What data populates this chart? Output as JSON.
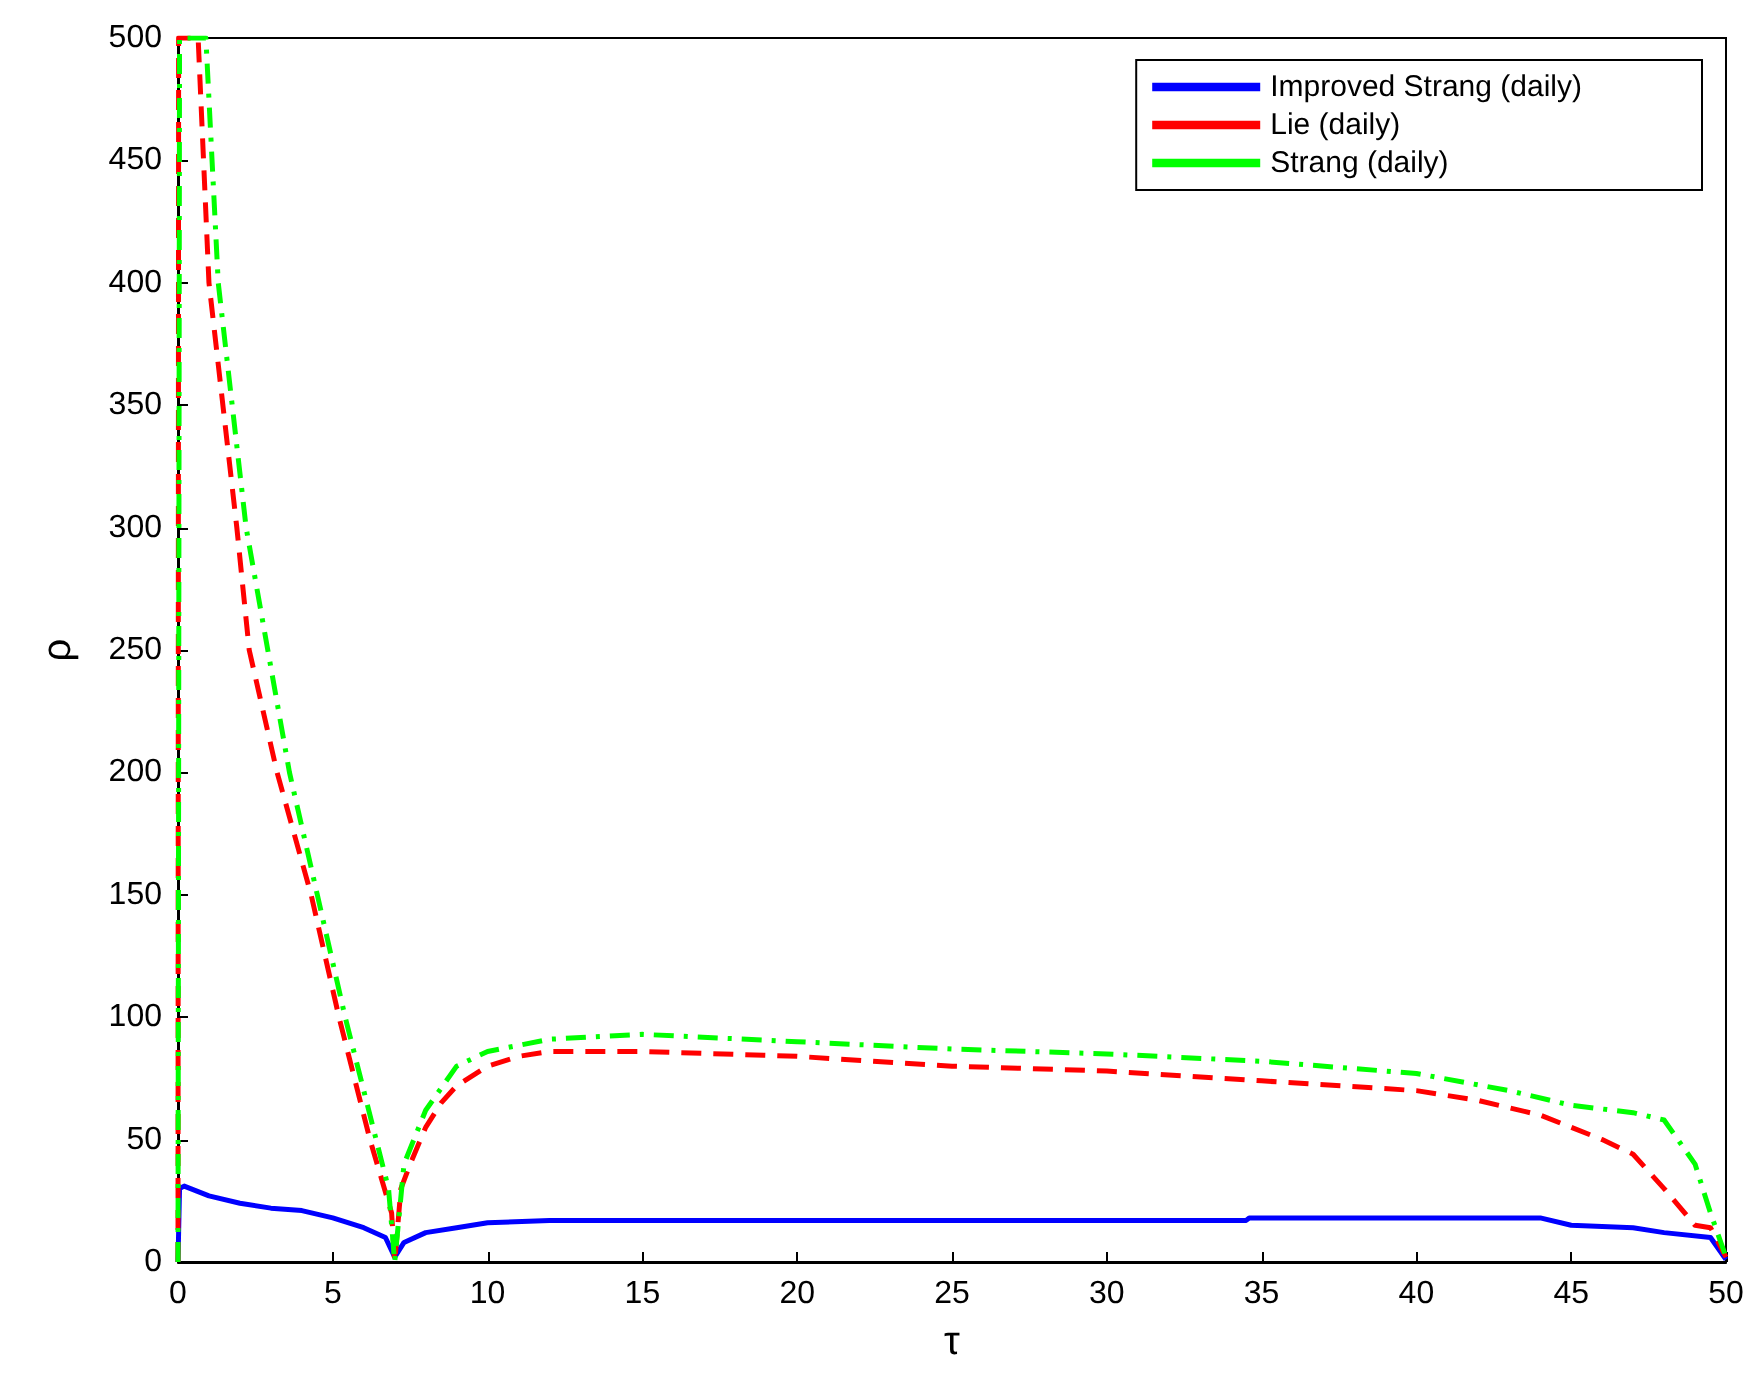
{
  "chart_data": {
    "type": "line",
    "xlabel": "τ",
    "ylabel": "ρ",
    "xlim": [
      0,
      50
    ],
    "ylim": [
      0,
      500
    ],
    "xticks": [
      0,
      5,
      10,
      15,
      20,
      25,
      30,
      35,
      40,
      45,
      50
    ],
    "yticks": [
      0,
      50,
      100,
      150,
      200,
      250,
      300,
      350,
      400,
      450,
      500
    ],
    "grid": false,
    "legend": "top right",
    "marker": "none",
    "series": [
      {
        "name": "Improved Strang (daily)",
        "color": "#0000ff",
        "line_style": "solid",
        "x": [
          0,
          0.05,
          0.2,
          1,
          2,
          3,
          4,
          5,
          6,
          6.7,
          7,
          7.3,
          8,
          9,
          10,
          12,
          20,
          30,
          34.5,
          34.6,
          44,
          45,
          47,
          48,
          49.5,
          50
        ],
        "values": [
          0,
          30,
          31,
          27,
          24,
          22,
          21,
          18,
          14,
          10,
          2,
          8,
          12,
          14,
          16,
          17,
          17,
          17,
          17,
          18,
          18,
          15,
          14,
          12,
          10,
          1
        ]
      },
      {
        "name": "Lie (daily)",
        "color": "#ff0000",
        "line_style": "dashed",
        "x": [
          0,
          0.02,
          0.65,
          1,
          1.9,
          2.3,
          3.2,
          4.3,
          5.2,
          6.2,
          6.9,
          7,
          7.2,
          7.5,
          8,
          8.5,
          9,
          10,
          11,
          12,
          15,
          20,
          25,
          30,
          35,
          40,
          42,
          44,
          46,
          47,
          48,
          49,
          49.5,
          50
        ],
        "values": [
          0,
          500,
          500,
          400,
          300,
          250,
          200,
          150,
          100,
          50,
          20,
          0,
          30,
          40,
          55,
          65,
          72,
          80,
          84,
          86,
          86,
          84,
          80,
          78,
          74,
          70,
          66,
          60,
          50,
          44,
          30,
          15,
          14,
          2
        ]
      },
      {
        "name": "Strang (daily)",
        "color": "#00ff00",
        "line_style": "dashdot",
        "x": [
          0,
          0.05,
          0.9,
          1.3,
          2.2,
          3.6,
          4.5,
          5.4,
          6.4,
          6.8,
          7,
          7.3,
          8,
          9,
          10,
          12,
          15,
          20,
          25,
          30,
          35,
          40,
          43,
          45,
          47,
          48,
          49,
          49.5,
          50
        ],
        "values": [
          0,
          500,
          500,
          400,
          300,
          200,
          150,
          100,
          50,
          30,
          0,
          40,
          62,
          80,
          86,
          91,
          93,
          90,
          87,
          85,
          82,
          77,
          70,
          64,
          61,
          58,
          40,
          20,
          2
        ]
      }
    ]
  }
}
